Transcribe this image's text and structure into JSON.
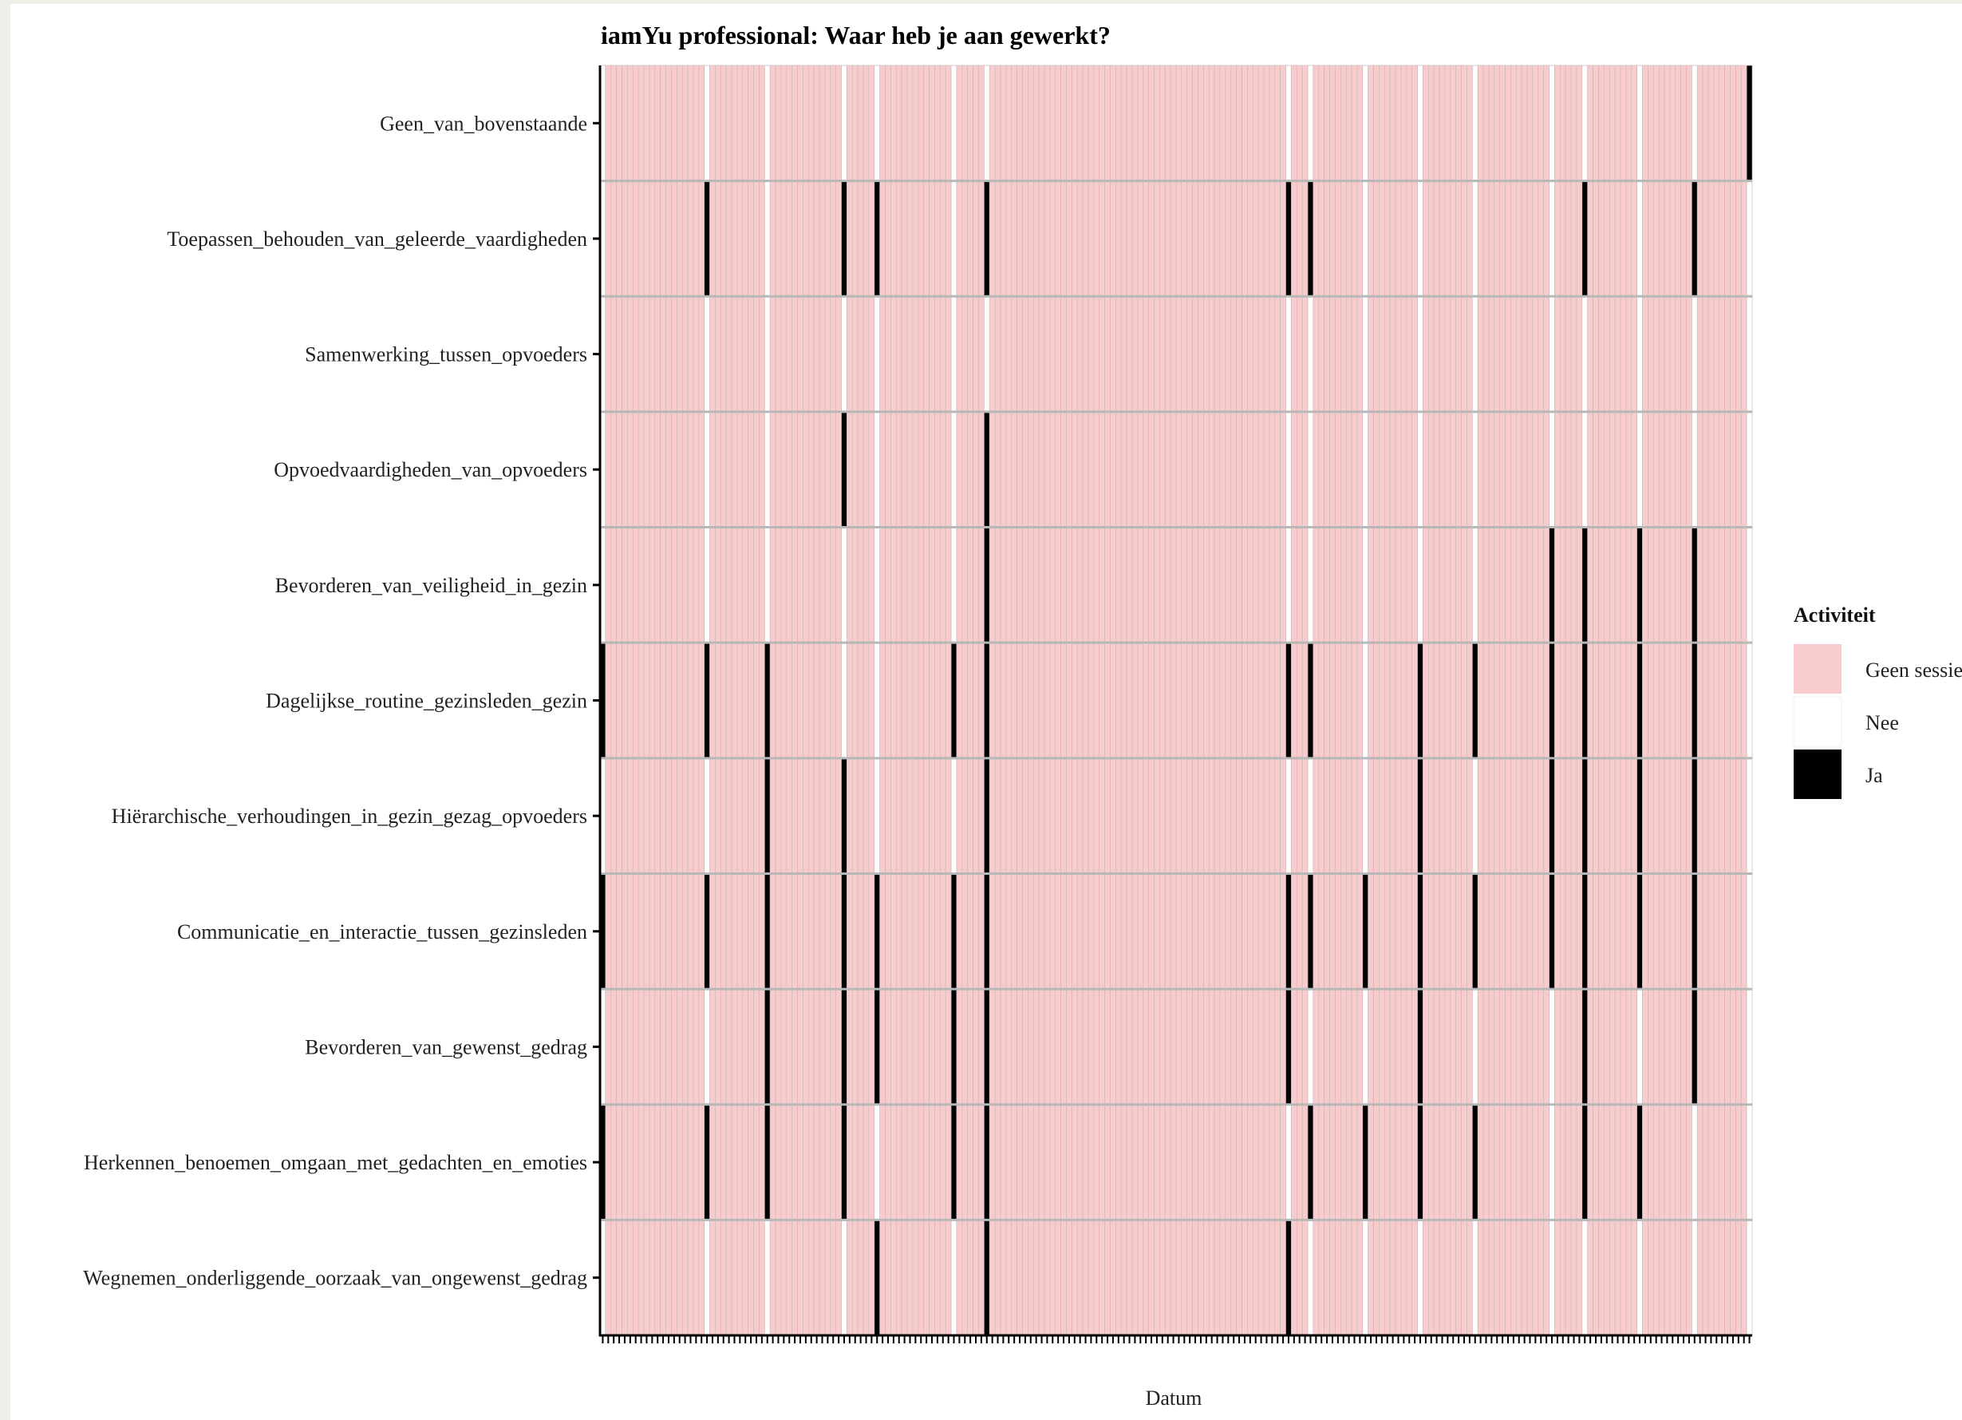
{
  "chart_data": {
    "type": "heatmap",
    "title": "iamYu professional: Waar heb je aan gewerkt?",
    "xlabel": "Datum",
    "ylabel": "",
    "grid": true,
    "legend_position": "right",
    "legend": {
      "title": "Activiteit",
      "entries": [
        {
          "label": "Geen sessie",
          "color": "#f8cccc"
        },
        {
          "label": "Nee",
          "color": "#ffffff"
        },
        {
          "label": "Ja",
          "color": "#000000"
        }
      ]
    },
    "categories": [
      "Geen_van_bovenstaande",
      "Toepassen_behouden_van_geleerde_vaardigheden",
      "Samenwerking_tussen_opvoeders",
      "Opvoedvaardigheden_van_opvoeders",
      "Bevorderen_van_veiligheid_in_gezin",
      "Dagelijkse_routine_gezinsleden_gezin",
      "Hiërarchische_verhoudingen_in_gezin_gezag_opvoeders",
      "Communicatie_en_interactie_tussen_gezinsleden",
      "Bevorderen_van_gewenst_gedrag",
      "Herkennen_benoemen_omgaan_met_gedachten_en_emoties",
      "Wegnemen_onderliggende_oorzaak_van_ongewenst_gedrag"
    ],
    "n_dates": 210,
    "session_dates": [
      0,
      19,
      30,
      44,
      50,
      64,
      70,
      125,
      129,
      139,
      149,
      159,
      173,
      179,
      189,
      199,
      209
    ],
    "ja_cells": {
      "Geen_van_bovenstaande": [
        209
      ],
      "Toepassen_behouden_van_geleerde_vaardigheden": [
        19,
        44,
        50,
        70,
        125,
        129,
        179,
        199
      ],
      "Samenwerking_tussen_opvoeders": [],
      "Opvoedvaardigheden_van_opvoeders": [
        44,
        70
      ],
      "Bevorderen_van_veiligheid_in_gezin": [
        70,
        173,
        179,
        189,
        199
      ],
      "Dagelijkse_routine_gezinsleden_gezin": [
        0,
        19,
        30,
        64,
        70,
        125,
        129,
        149,
        159,
        173,
        179,
        189,
        199
      ],
      "Hiërarchische_verhoudingen_in_gezin_gezag_opvoeders": [
        30,
        44,
        70,
        149,
        173,
        179,
        189,
        199
      ],
      "Communicatie_en_interactie_tussen_gezinsleden": [
        0,
        19,
        30,
        44,
        50,
        64,
        70,
        125,
        129,
        139,
        149,
        159,
        173,
        179,
        189,
        199
      ],
      "Bevorderen_van_gewenst_gedrag": [
        30,
        44,
        50,
        64,
        70,
        125,
        149,
        179,
        199
      ],
      "Herkennen_benoemen_omgaan_met_gedachten_en_emoties": [
        0,
        19,
        30,
        44,
        64,
        70,
        129,
        139,
        149,
        159,
        179,
        189
      ],
      "Wegnemen_onderliggende_oorzaak_van_ongewenst_gedrag": [
        50,
        70,
        125
      ]
    }
  }
}
